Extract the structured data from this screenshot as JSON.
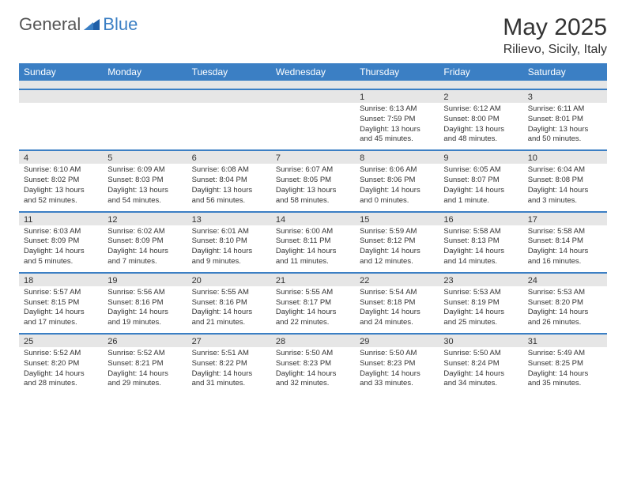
{
  "logo": {
    "text1": "General",
    "text2": "Blue"
  },
  "title": "May 2025",
  "location": "Rilievo, Sicily, Italy",
  "colors": {
    "header_bg": "#3b7fc4",
    "header_text": "#ffffff",
    "daynum_bg": "#e6e6e6",
    "border": "#3b7fc4",
    "text": "#333333",
    "page_bg": "#ffffff"
  },
  "day_headers": [
    "Sunday",
    "Monday",
    "Tuesday",
    "Wednesday",
    "Thursday",
    "Friday",
    "Saturday"
  ],
  "weeks": [
    {
      "nums": [
        "",
        "",
        "",
        "",
        "1",
        "2",
        "3"
      ],
      "cells": [
        null,
        null,
        null,
        null,
        {
          "sunrise": "Sunrise: 6:13 AM",
          "sunset": "Sunset: 7:59 PM",
          "day1": "Daylight: 13 hours",
          "day2": "and 45 minutes."
        },
        {
          "sunrise": "Sunrise: 6:12 AM",
          "sunset": "Sunset: 8:00 PM",
          "day1": "Daylight: 13 hours",
          "day2": "and 48 minutes."
        },
        {
          "sunrise": "Sunrise: 6:11 AM",
          "sunset": "Sunset: 8:01 PM",
          "day1": "Daylight: 13 hours",
          "day2": "and 50 minutes."
        }
      ]
    },
    {
      "nums": [
        "4",
        "5",
        "6",
        "7",
        "8",
        "9",
        "10"
      ],
      "cells": [
        {
          "sunrise": "Sunrise: 6:10 AM",
          "sunset": "Sunset: 8:02 PM",
          "day1": "Daylight: 13 hours",
          "day2": "and 52 minutes."
        },
        {
          "sunrise": "Sunrise: 6:09 AM",
          "sunset": "Sunset: 8:03 PM",
          "day1": "Daylight: 13 hours",
          "day2": "and 54 minutes."
        },
        {
          "sunrise": "Sunrise: 6:08 AM",
          "sunset": "Sunset: 8:04 PM",
          "day1": "Daylight: 13 hours",
          "day2": "and 56 minutes."
        },
        {
          "sunrise": "Sunrise: 6:07 AM",
          "sunset": "Sunset: 8:05 PM",
          "day1": "Daylight: 13 hours",
          "day2": "and 58 minutes."
        },
        {
          "sunrise": "Sunrise: 6:06 AM",
          "sunset": "Sunset: 8:06 PM",
          "day1": "Daylight: 14 hours",
          "day2": "and 0 minutes."
        },
        {
          "sunrise": "Sunrise: 6:05 AM",
          "sunset": "Sunset: 8:07 PM",
          "day1": "Daylight: 14 hours",
          "day2": "and 1 minute."
        },
        {
          "sunrise": "Sunrise: 6:04 AM",
          "sunset": "Sunset: 8:08 PM",
          "day1": "Daylight: 14 hours",
          "day2": "and 3 minutes."
        }
      ]
    },
    {
      "nums": [
        "11",
        "12",
        "13",
        "14",
        "15",
        "16",
        "17"
      ],
      "cells": [
        {
          "sunrise": "Sunrise: 6:03 AM",
          "sunset": "Sunset: 8:09 PM",
          "day1": "Daylight: 14 hours",
          "day2": "and 5 minutes."
        },
        {
          "sunrise": "Sunrise: 6:02 AM",
          "sunset": "Sunset: 8:09 PM",
          "day1": "Daylight: 14 hours",
          "day2": "and 7 minutes."
        },
        {
          "sunrise": "Sunrise: 6:01 AM",
          "sunset": "Sunset: 8:10 PM",
          "day1": "Daylight: 14 hours",
          "day2": "and 9 minutes."
        },
        {
          "sunrise": "Sunrise: 6:00 AM",
          "sunset": "Sunset: 8:11 PM",
          "day1": "Daylight: 14 hours",
          "day2": "and 11 minutes."
        },
        {
          "sunrise": "Sunrise: 5:59 AM",
          "sunset": "Sunset: 8:12 PM",
          "day1": "Daylight: 14 hours",
          "day2": "and 12 minutes."
        },
        {
          "sunrise": "Sunrise: 5:58 AM",
          "sunset": "Sunset: 8:13 PM",
          "day1": "Daylight: 14 hours",
          "day2": "and 14 minutes."
        },
        {
          "sunrise": "Sunrise: 5:58 AM",
          "sunset": "Sunset: 8:14 PM",
          "day1": "Daylight: 14 hours",
          "day2": "and 16 minutes."
        }
      ]
    },
    {
      "nums": [
        "18",
        "19",
        "20",
        "21",
        "22",
        "23",
        "24"
      ],
      "cells": [
        {
          "sunrise": "Sunrise: 5:57 AM",
          "sunset": "Sunset: 8:15 PM",
          "day1": "Daylight: 14 hours",
          "day2": "and 17 minutes."
        },
        {
          "sunrise": "Sunrise: 5:56 AM",
          "sunset": "Sunset: 8:16 PM",
          "day1": "Daylight: 14 hours",
          "day2": "and 19 minutes."
        },
        {
          "sunrise": "Sunrise: 5:55 AM",
          "sunset": "Sunset: 8:16 PM",
          "day1": "Daylight: 14 hours",
          "day2": "and 21 minutes."
        },
        {
          "sunrise": "Sunrise: 5:55 AM",
          "sunset": "Sunset: 8:17 PM",
          "day1": "Daylight: 14 hours",
          "day2": "and 22 minutes."
        },
        {
          "sunrise": "Sunrise: 5:54 AM",
          "sunset": "Sunset: 8:18 PM",
          "day1": "Daylight: 14 hours",
          "day2": "and 24 minutes."
        },
        {
          "sunrise": "Sunrise: 5:53 AM",
          "sunset": "Sunset: 8:19 PM",
          "day1": "Daylight: 14 hours",
          "day2": "and 25 minutes."
        },
        {
          "sunrise": "Sunrise: 5:53 AM",
          "sunset": "Sunset: 8:20 PM",
          "day1": "Daylight: 14 hours",
          "day2": "and 26 minutes."
        }
      ]
    },
    {
      "nums": [
        "25",
        "26",
        "27",
        "28",
        "29",
        "30",
        "31"
      ],
      "cells": [
        {
          "sunrise": "Sunrise: 5:52 AM",
          "sunset": "Sunset: 8:20 PM",
          "day1": "Daylight: 14 hours",
          "day2": "and 28 minutes."
        },
        {
          "sunrise": "Sunrise: 5:52 AM",
          "sunset": "Sunset: 8:21 PM",
          "day1": "Daylight: 14 hours",
          "day2": "and 29 minutes."
        },
        {
          "sunrise": "Sunrise: 5:51 AM",
          "sunset": "Sunset: 8:22 PM",
          "day1": "Daylight: 14 hours",
          "day2": "and 31 minutes."
        },
        {
          "sunrise": "Sunrise: 5:50 AM",
          "sunset": "Sunset: 8:23 PM",
          "day1": "Daylight: 14 hours",
          "day2": "and 32 minutes."
        },
        {
          "sunrise": "Sunrise: 5:50 AM",
          "sunset": "Sunset: 8:23 PM",
          "day1": "Daylight: 14 hours",
          "day2": "and 33 minutes."
        },
        {
          "sunrise": "Sunrise: 5:50 AM",
          "sunset": "Sunset: 8:24 PM",
          "day1": "Daylight: 14 hours",
          "day2": "and 34 minutes."
        },
        {
          "sunrise": "Sunrise: 5:49 AM",
          "sunset": "Sunset: 8:25 PM",
          "day1": "Daylight: 14 hours",
          "day2": "and 35 minutes."
        }
      ]
    }
  ]
}
